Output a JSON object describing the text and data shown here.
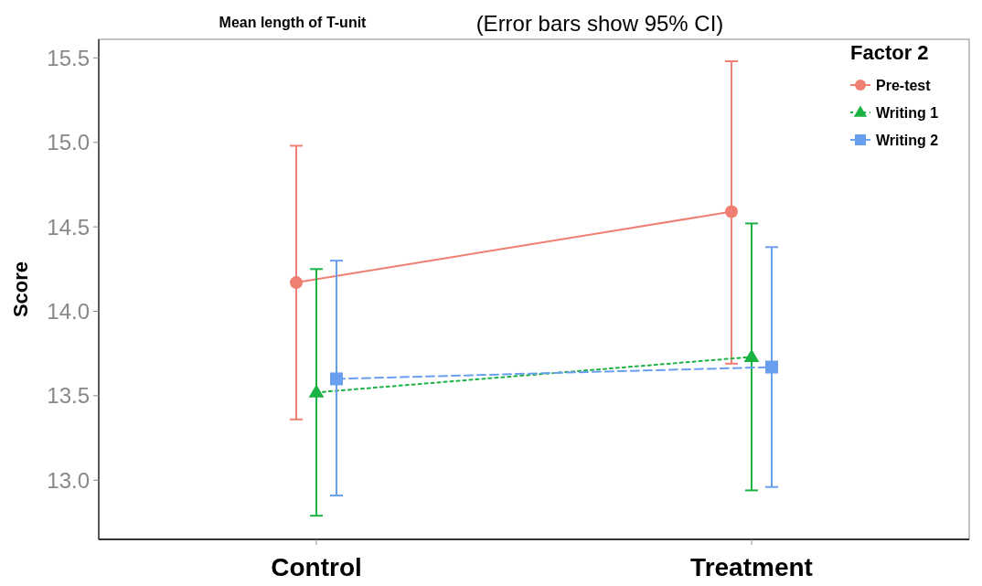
{
  "chart_data": {
    "type": "line",
    "title": "Mean length of T-unit",
    "subtitle": "(Error bars show 95% CI)",
    "ylabel": "Score",
    "legend_title": "Factor 2",
    "legend": "top right",
    "categories": [
      "Control",
      "Treatment"
    ],
    "ylim": [
      12.65,
      15.61
    ],
    "yticks": [
      {
        "value": 13,
        "label": "13.0"
      },
      {
        "value": 13.5,
        "label": "13.5"
      },
      {
        "value": 14,
        "label": "14.0"
      },
      {
        "value": 14.5,
        "label": "14.5"
      },
      {
        "value": 15,
        "label": "15.0"
      },
      {
        "value": 15.5,
        "label": "15.5"
      }
    ],
    "grid": false,
    "series": [
      {
        "name": "Pre-test",
        "color": "#f07f73",
        "marker": "circle",
        "line_style": "solid",
        "values": [
          14.17,
          14.59
        ],
        "errors": [
          [
            13.36,
            14.98
          ],
          [
            13.69,
            15.48
          ]
        ]
      },
      {
        "name": "Writing 1",
        "color": "#1bb244",
        "marker": "triangle",
        "line_style": "dotted",
        "values": [
          13.52,
          13.73
        ],
        "errors": [
          [
            12.79,
            14.25
          ],
          [
            12.94,
            14.52
          ]
        ]
      },
      {
        "name": "Writing 2",
        "color": "#6a9ff0",
        "marker": "square",
        "line_style": "dashed",
        "values": [
          13.6,
          13.67
        ],
        "errors": [
          [
            12.91,
            14.3
          ],
          [
            12.96,
            14.38
          ]
        ]
      }
    ]
  }
}
